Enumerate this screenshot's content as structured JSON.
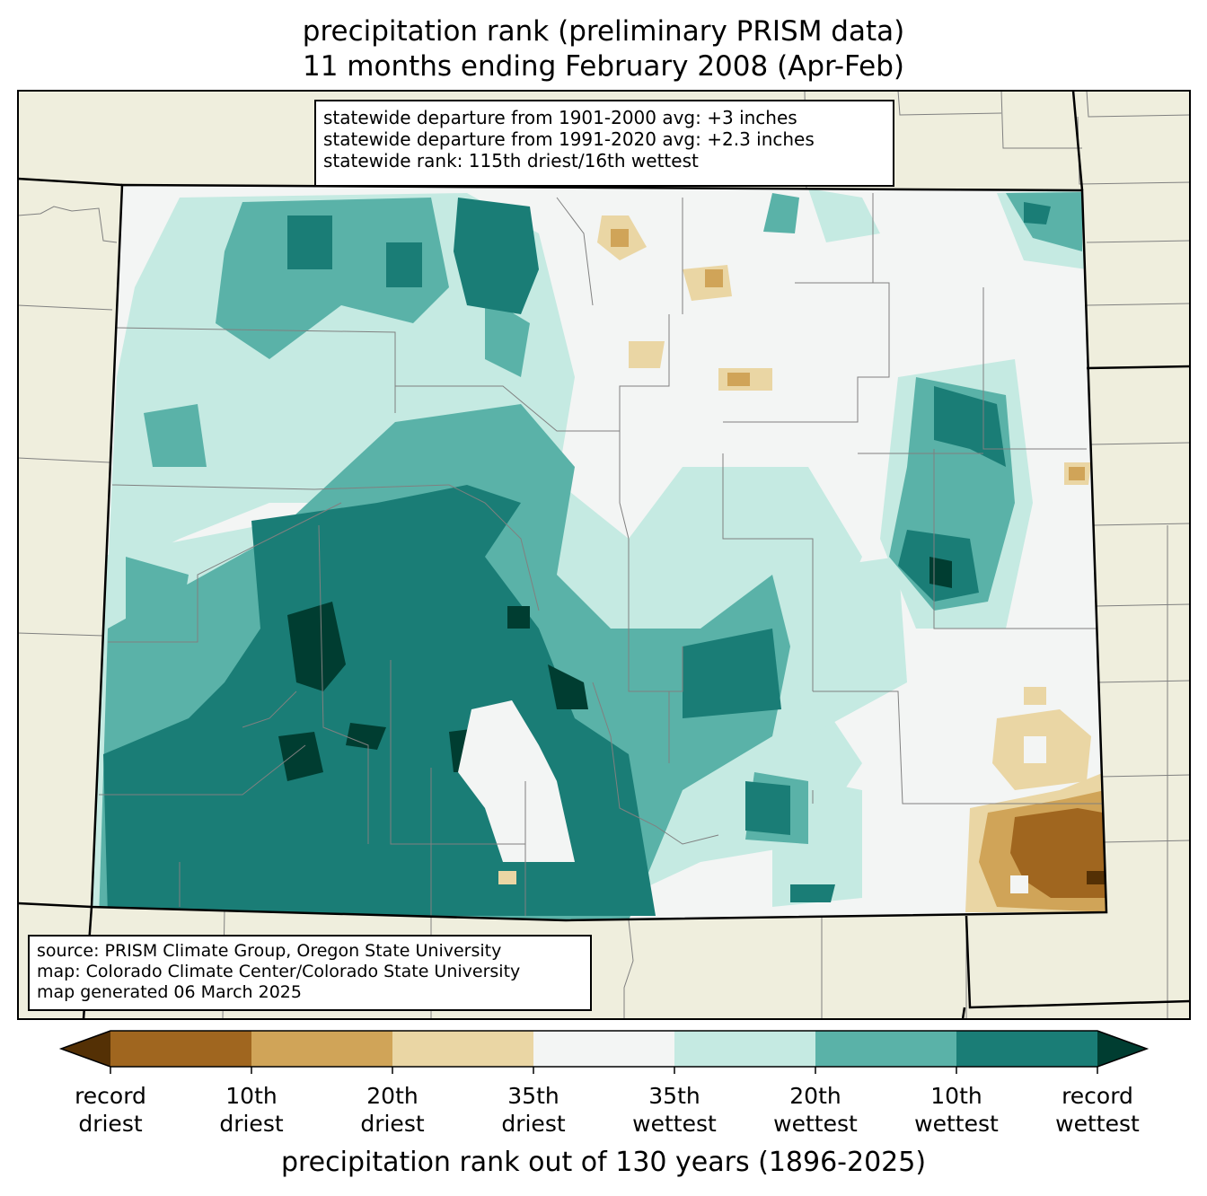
{
  "title": {
    "line1": "precipitation rank (preliminary PRISM data)",
    "line2": "11 months ending February 2008 (Apr-Feb)"
  },
  "stats": {
    "line1": "statewide departure from 1901-2000 avg: +3 inches",
    "line2": "statewide departure from 1991-2020 avg: +2.3 inches",
    "line3": "statewide rank: 115th driest/16th wettest"
  },
  "source": {
    "line1": "source: PRISM Climate Group, Oregon State University",
    "line2": "map: Colorado Climate Center/Colorado State University",
    "line3": "map generated 06 March 2025"
  },
  "colorbar": {
    "axis_label": "precipitation rank out of 130 years (1896-2025)",
    "colors": [
      "#543005",
      "#a0661f",
      "#d0a458",
      "#ead6a4",
      "#f3f5f4",
      "#c5eae2",
      "#5ab2a8",
      "#1a7d76",
      "#003d31"
    ],
    "tick_labels": [
      {
        "line1": "record",
        "line2": "driest"
      },
      {
        "line1": "10th",
        "line2": "driest"
      },
      {
        "line1": "20th",
        "line2": "driest"
      },
      {
        "line1": "35th",
        "line2": "driest"
      },
      {
        "line1": "35th",
        "line2": "wettest"
      },
      {
        "line1": "20th",
        "line2": "wettest"
      },
      {
        "line1": "10th",
        "line2": "wettest"
      },
      {
        "line1": "record",
        "line2": "wettest"
      }
    ]
  },
  "map_colors": {
    "neighbor_land": "#efeedd",
    "county_lines": "#808080",
    "state_lines": "#000000"
  }
}
